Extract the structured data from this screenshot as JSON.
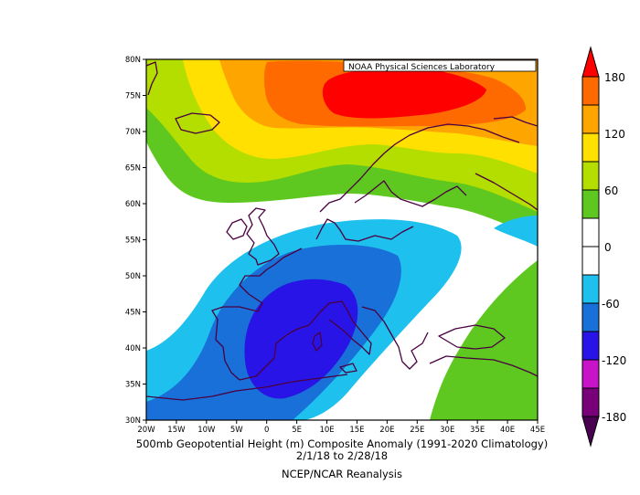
{
  "map": {
    "lon_labels": [
      "20W",
      "15W",
      "10W",
      "5W",
      "0",
      "5E",
      "10E",
      "15E",
      "20E",
      "25E",
      "30E",
      "35E",
      "40E",
      "45E"
    ],
    "lat_labels": [
      "30N",
      "35N",
      "40N",
      "45N",
      "50N",
      "55N",
      "60N",
      "65N",
      "70N",
      "75N",
      "80N"
    ],
    "credit": "NOAA Physical Sciences Laboratory"
  },
  "colorbar": {
    "labels": [
      "180",
      "120",
      "60",
      "0",
      "-60",
      "-120",
      "-180"
    ],
    "colors": {
      "c180": "#ff0000",
      "c150": "#ff6a00",
      "c120": "#ffa500",
      "c90": "#ffe000",
      "c60": "#b4de00",
      "c30": "#5ec820",
      "c0": "#ffffff",
      "cm30": "#1ec0ee",
      "cm60": "#1870d8",
      "cm90": "#2814e6",
      "cm120": "#c814c8",
      "cm150": "#780078"
    }
  },
  "captions": {
    "line1": "500mb Geopotential Height (m) Composite Anomaly (1991-2020 Climatology)",
    "line2": "2/1/18  to 2/28/18",
    "line3": "NCEP/NCAR Reanalysis"
  }
}
